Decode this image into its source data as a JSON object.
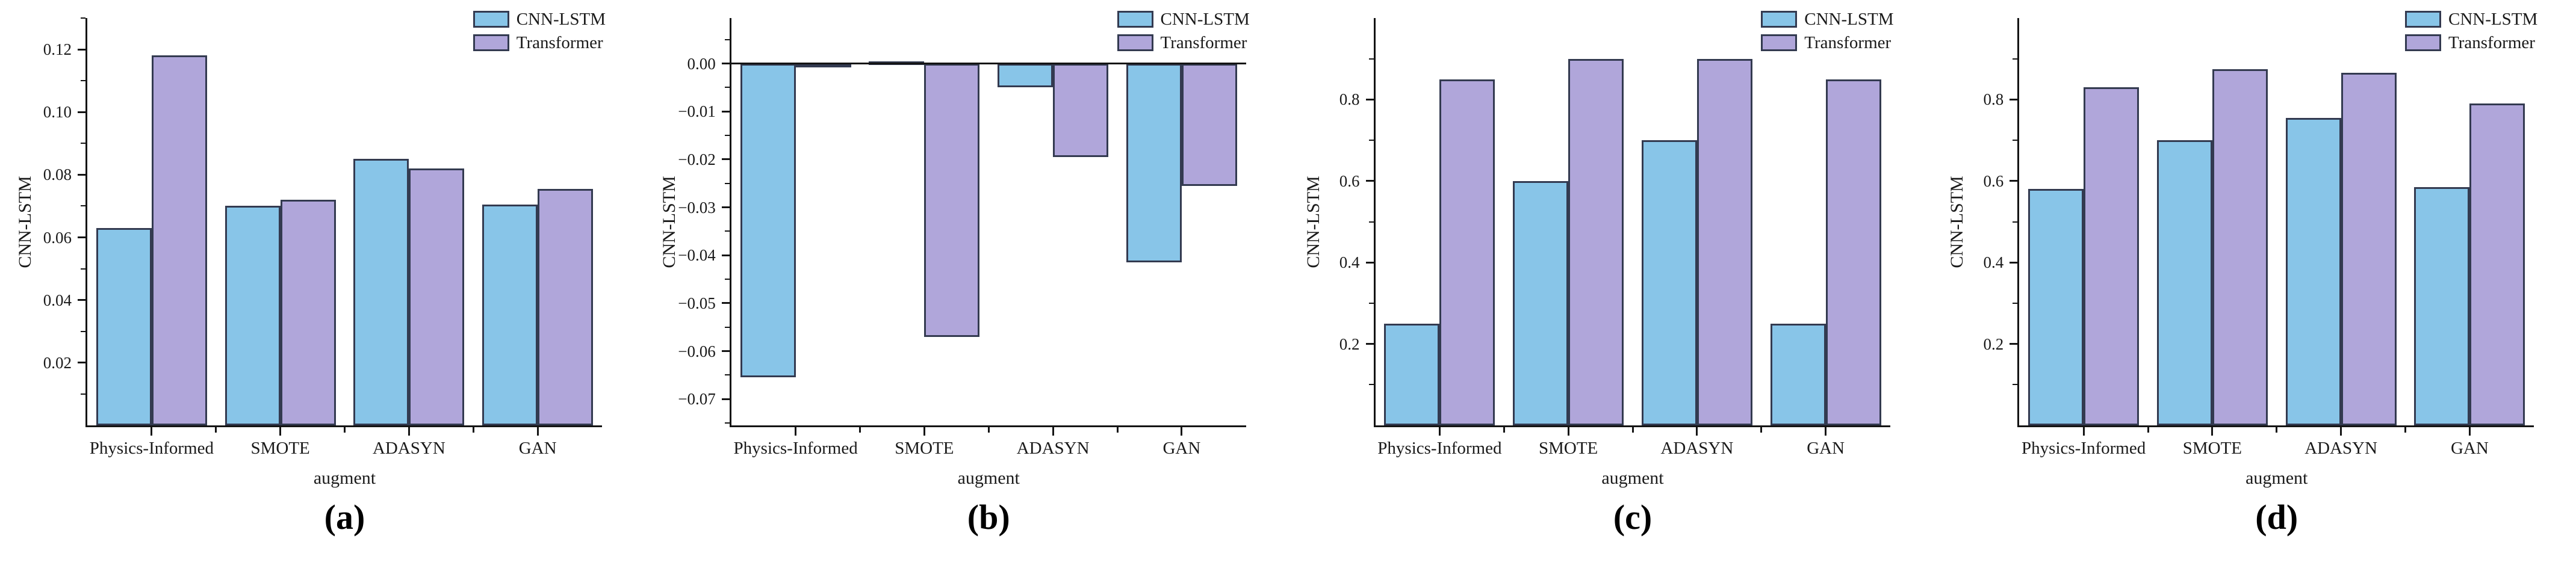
{
  "figure": {
    "background": "#ffffff",
    "panel_labels": [
      "(a)",
      "(b)",
      "(c)",
      "(d)"
    ]
  },
  "colors": {
    "cnn_lstm_fill": "#88c5e8",
    "transformer_fill": "#b0a6da",
    "bar_border": "#333a50",
    "axis": "#141414",
    "text": "#1a1a1a"
  },
  "legend": {
    "position": "top-right",
    "items": [
      {
        "label": "CNN-LSTM",
        "color_key": "cnn_lstm_fill"
      },
      {
        "label": "Transformer",
        "color_key": "transformer_fill"
      }
    ]
  },
  "chart_data": [
    {
      "type": "bar",
      "panel_label": "(a)",
      "title": "",
      "categories": [
        "Physics-Informed",
        "SMOTE",
        "ADASYN",
        "GAN"
      ],
      "xlabel": "augment",
      "ylabel": "CNN-LSTM",
      "ylim": [
        0,
        0.13
      ],
      "yticks": [
        0.02,
        0.04,
        0.06,
        0.08,
        0.1,
        0.12
      ],
      "ytick_labels": [
        "0.02",
        "0.04",
        "0.06",
        "0.08",
        "0.10",
        "0.12"
      ],
      "grid": false,
      "legend_position": "top-right",
      "series": [
        {
          "name": "CNN-LSTM",
          "values": [
            0.063,
            0.07,
            0.085,
            0.0705
          ]
        },
        {
          "name": "Transformer",
          "values": [
            0.118,
            0.072,
            0.082,
            0.0755
          ]
        }
      ]
    },
    {
      "type": "bar",
      "panel_label": "(b)",
      "title": "",
      "categories": [
        "Physics-Informed",
        "SMOTE",
        "ADASYN",
        "GAN"
      ],
      "xlabel": "augment",
      "ylabel": "CNN-LSTM",
      "ylim": [
        -0.0755,
        0.0095
      ],
      "yticks": [
        -0.07,
        -0.06,
        -0.05,
        -0.04,
        -0.03,
        -0.02,
        -0.01,
        0.0
      ],
      "ytick_labels": [
        "−0.07",
        "−0.06",
        "−0.05",
        "−0.04",
        "−0.03",
        "−0.02",
        "−0.01",
        "0.00"
      ],
      "grid": false,
      "legend_position": "top-right",
      "series": [
        {
          "name": "CNN-LSTM",
          "values": [
            -0.0655,
            0.0005,
            -0.005,
            -0.0415
          ]
        },
        {
          "name": "Transformer",
          "values": [
            -0.0005,
            -0.057,
            -0.0195,
            -0.0255
          ]
        }
      ]
    },
    {
      "type": "bar",
      "panel_label": "(c)",
      "title": "",
      "categories": [
        "Physics-Informed",
        "SMOTE",
        "ADASYN",
        "GAN"
      ],
      "xlabel": "augment",
      "ylabel": "CNN-LSTM",
      "ylim": [
        0,
        1.0
      ],
      "yticks": [
        0.2,
        0.4,
        0.6,
        0.8
      ],
      "ytick_labels": [
        "0.2",
        "0.4",
        "0.6",
        "0.8"
      ],
      "grid": false,
      "legend_position": "top-right",
      "series": [
        {
          "name": "CNN-LSTM",
          "values": [
            0.25,
            0.6,
            0.7,
            0.25
          ]
        },
        {
          "name": "Transformer",
          "values": [
            0.85,
            0.9,
            0.9,
            0.85
          ]
        }
      ]
    },
    {
      "type": "bar",
      "panel_label": "(d)",
      "title": "",
      "categories": [
        "Physics-Informed",
        "SMOTE",
        "ADASYN",
        "GAN"
      ],
      "xlabel": "augment",
      "ylabel": "CNN-LSTM",
      "ylim": [
        0,
        1.0
      ],
      "yticks": [
        0.2,
        0.4,
        0.6,
        0.8
      ],
      "ytick_labels": [
        "0.2",
        "0.4",
        "0.6",
        "0.8"
      ],
      "grid": false,
      "legend_position": "top-right",
      "series": [
        {
          "name": "CNN-LSTM",
          "values": [
            0.58,
            0.7,
            0.755,
            0.585
          ]
        },
        {
          "name": "Transformer",
          "values": [
            0.83,
            0.875,
            0.865,
            0.79
          ]
        }
      ]
    }
  ]
}
